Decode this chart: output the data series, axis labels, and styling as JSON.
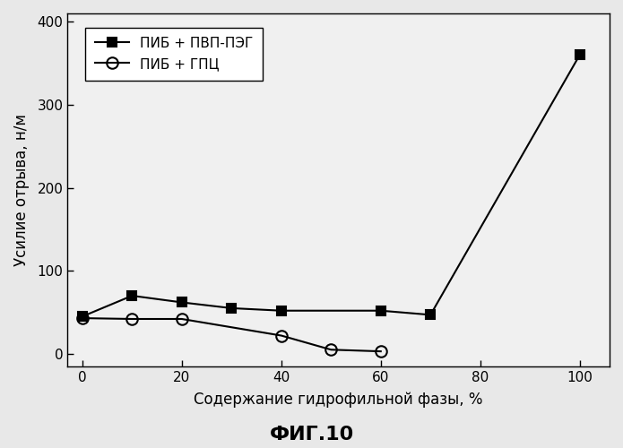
{
  "series1": {
    "label": "ПИБ + ПВП-ПЭГ",
    "x": [
      0,
      10,
      20,
      30,
      40,
      60,
      70,
      100
    ],
    "y": [
      45,
      70,
      62,
      55,
      52,
      52,
      47,
      360
    ],
    "marker": "s",
    "markersize": 7,
    "color": "#000000",
    "fillstyle": "full"
  },
  "series2": {
    "label": "ПИБ + ГПЦ",
    "x": [
      0,
      10,
      20,
      40,
      50,
      60
    ],
    "y": [
      43,
      42,
      42,
      22,
      5,
      3
    ],
    "marker": "o",
    "markersize": 9,
    "color": "#000000",
    "fillstyle": "none"
  },
  "xlabel": "Содержание гидрофильной фазы, %",
  "ylabel": "Усилие отрыва, н/м",
  "title": "ФИГ.10",
  "xlim": [
    -3,
    106
  ],
  "ylim": [
    -15,
    410
  ],
  "yticks": [
    0,
    100,
    200,
    300,
    400
  ],
  "xticks": [
    0,
    20,
    40,
    60,
    80,
    100
  ],
  "background_color": "#e8e8e8",
  "plot_bg_color": "#f0f0f0",
  "linewidth": 1.5,
  "tick_fontsize": 11,
  "label_fontsize": 12,
  "legend_fontsize": 11,
  "title_fontsize": 16
}
